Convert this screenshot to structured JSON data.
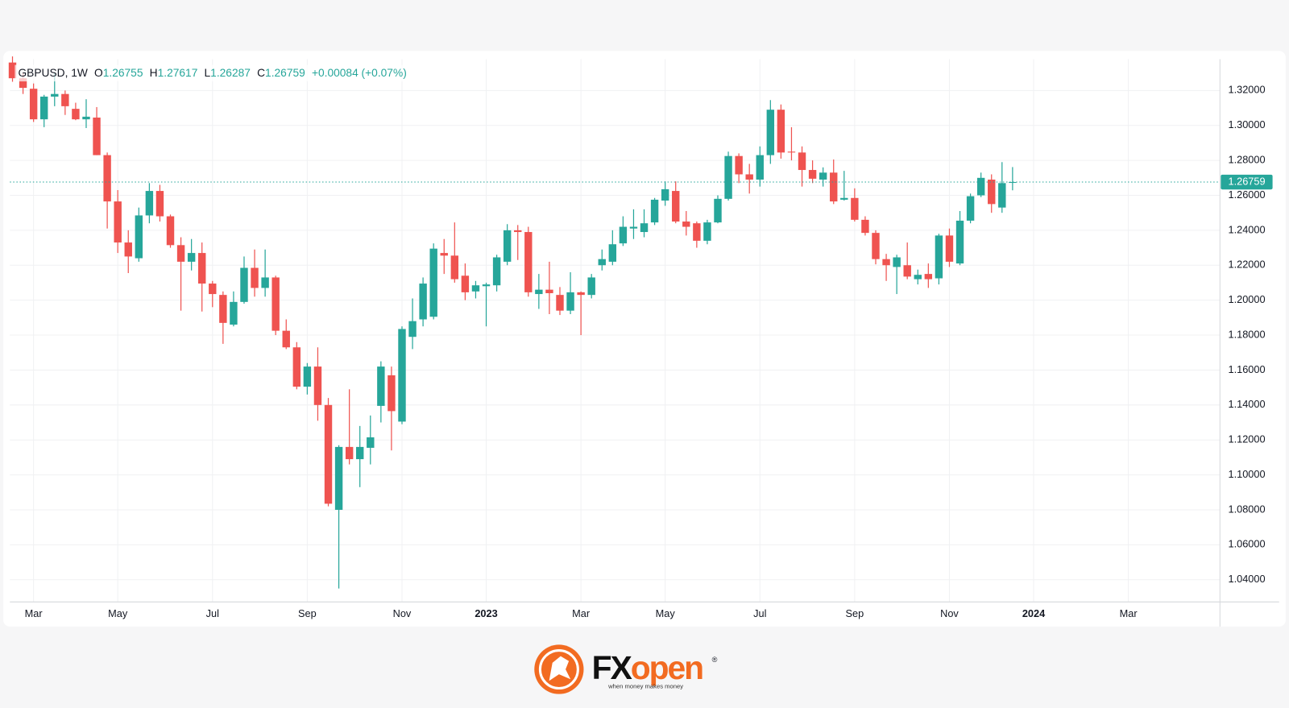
{
  "chart_data": {
    "type": "candlestick",
    "symbol_label": "GBPUSD, 1W",
    "ohlc_labels": [
      "O",
      "H",
      "L",
      "C"
    ],
    "change": "+0.00084 (+0.07%)",
    "up_color": "#26a69a",
    "down_color": "#ef5350",
    "grid": true,
    "categories": [
      null,
      null,
      null,
      null,
      null,
      null,
      null,
      null,
      null,
      null,
      null,
      null,
      null,
      null,
      null,
      null,
      null,
      null,
      null,
      null,
      null,
      null,
      null,
      null,
      null,
      null,
      null,
      null,
      null,
      null,
      null,
      null,
      null,
      null,
      null,
      null,
      null,
      null,
      null,
      null,
      null,
      null,
      null,
      null,
      null,
      null,
      null,
      null,
      null,
      null,
      null,
      null,
      null,
      null,
      null,
      null,
      null,
      null,
      null,
      null,
      null,
      null,
      null,
      null,
      null,
      null,
      null,
      null,
      null,
      null,
      null,
      null,
      null,
      null,
      null,
      null,
      null,
      null,
      null,
      null,
      null,
      null,
      null,
      null,
      null,
      null,
      null,
      null,
      null,
      null,
      null,
      null,
      null,
      null,
      null,
      null
    ],
    "open": [
      1.336,
      1.327,
      1.321,
      1.3035,
      1.3165,
      1.318,
      1.3095,
      1.3035,
      1.3045,
      1.283,
      1.2565,
      1.233,
      1.224,
      1.2485,
      1.2625,
      1.248,
      1.2315,
      1.222,
      1.227,
      1.2095,
      1.203,
      1.186,
      1.199,
      1.2185,
      1.207,
      1.213,
      1.1825,
      1.173,
      1.1505,
      1.162,
      1.14,
      1.08,
      1.116,
      1.109,
      1.1155,
      1.1395,
      1.157,
      1.1305,
      1.179,
      1.189,
      1.1905,
      1.227,
      1.2255,
      1.214,
      1.205,
      1.208,
      1.2085,
      1.222,
      1.24,
      1.239,
      1.2035,
      1.206,
      1.203,
      1.194,
      1.2045,
      1.203,
      1.22,
      1.222,
      1.2325,
      1.241,
      1.239,
      1.2445,
      1.257,
      1.2625,
      1.245,
      1.244,
      1.234,
      1.2445,
      1.258,
      1.2825,
      1.272,
      1.269,
      1.283,
      1.309,
      1.285,
      1.2845,
      1.2745,
      1.269,
      1.273,
      1.2575,
      1.2585,
      1.246,
      1.2385,
      1.2235,
      1.219,
      1.22,
      1.212,
      1.215,
      1.2125,
      1.237,
      1.221,
      1.2455,
      1.26,
      1.269,
      1.253,
      1.26755
    ],
    "high": [
      1.3395,
      1.33,
      1.324,
      1.3175,
      1.33,
      1.32,
      1.313,
      1.315,
      1.3105,
      1.2845,
      1.263,
      1.24,
      1.253,
      1.267,
      1.266,
      1.249,
      1.236,
      1.235,
      1.233,
      1.211,
      1.205,
      1.205,
      1.225,
      1.229,
      1.229,
      1.214,
      1.189,
      1.176,
      1.164,
      1.173,
      1.144,
      1.117,
      1.149,
      1.128,
      1.134,
      1.165,
      1.162,
      1.185,
      1.201,
      1.213,
      1.2325,
      1.235,
      1.2445,
      1.221,
      1.211,
      1.21,
      1.226,
      1.2435,
      1.243,
      1.242,
      1.215,
      1.222,
      1.2075,
      1.216,
      1.205,
      1.215,
      1.229,
      1.24,
      1.248,
      1.252,
      1.252,
      1.2585,
      1.268,
      1.268,
      1.251,
      1.245,
      1.246,
      1.26,
      1.285,
      1.284,
      1.278,
      1.288,
      1.3145,
      1.312,
      1.299,
      1.288,
      1.28,
      1.276,
      1.2805,
      1.274,
      1.264,
      1.248,
      1.24,
      1.2265,
      1.226,
      1.233,
      1.2175,
      1.221,
      1.238,
      1.241,
      1.251,
      1.261,
      1.273,
      1.272,
      1.279,
      1.27617
    ],
    "low": [
      1.325,
      1.318,
      1.302,
      1.299,
      1.311,
      1.306,
      1.303,
      1.2985,
      1.283,
      1.241,
      1.227,
      1.2155,
      1.222,
      1.244,
      1.245,
      1.23,
      1.194,
      1.217,
      1.1935,
      1.196,
      1.175,
      1.185,
      1.198,
      1.202,
      1.202,
      1.18,
      1.172,
      1.149,
      1.146,
      1.131,
      1.082,
      1.035,
      1.106,
      1.093,
      1.106,
      1.13,
      1.114,
      1.129,
      1.172,
      1.185,
      1.189,
      1.215,
      1.21,
      1.2,
      1.201,
      1.185,
      1.205,
      1.22,
      1.223,
      1.202,
      1.195,
      1.192,
      1.1915,
      1.192,
      1.18,
      1.201,
      1.217,
      1.22,
      1.231,
      1.235,
      1.236,
      1.243,
      1.254,
      1.244,
      1.237,
      1.23,
      1.232,
      1.244,
      1.257,
      1.267,
      1.261,
      1.265,
      1.278,
      1.281,
      1.28,
      1.265,
      1.267,
      1.265,
      1.255,
      1.257,
      1.245,
      1.237,
      1.2205,
      1.211,
      1.2035,
      1.212,
      1.209,
      1.207,
      1.209,
      1.219,
      1.22,
      1.244,
      1.259,
      1.25,
      1.25,
      1.26287
    ],
    "close": [
      1.327,
      1.3215,
      1.3035,
      1.3165,
      1.318,
      1.311,
      1.3035,
      1.305,
      1.283,
      1.2565,
      1.233,
      1.225,
      1.2485,
      1.2625,
      1.248,
      1.2315,
      1.222,
      1.227,
      1.2095,
      1.2035,
      1.187,
      1.199,
      1.2185,
      1.207,
      1.213,
      1.1825,
      1.173,
      1.1505,
      1.162,
      1.14,
      1.0835,
      1.116,
      1.109,
      1.116,
      1.1215,
      1.162,
      1.1365,
      1.1835,
      1.188,
      1.2095,
      1.2295,
      1.2255,
      1.212,
      1.2045,
      1.2085,
      1.209,
      1.2245,
      1.24,
      1.239,
      1.2045,
      1.206,
      1.204,
      1.194,
      1.2045,
      1.203,
      1.213,
      1.2235,
      1.232,
      1.242,
      1.242,
      1.244,
      1.2575,
      1.2635,
      1.245,
      1.242,
      1.234,
      1.2445,
      1.258,
      1.2825,
      1.272,
      1.269,
      1.283,
      1.309,
      1.2845,
      1.2845,
      1.2745,
      1.2695,
      1.273,
      1.2565,
      1.2585,
      1.246,
      1.2385,
      1.2235,
      1.22,
      1.2245,
      1.2135,
      1.2145,
      1.212,
      1.237,
      1.222,
      1.2455,
      1.2595,
      1.27,
      1.255,
      1.267,
      1.26759
    ],
    "xlim": [
      -0.25,
      114.7
    ],
    "xticks": [
      {
        "value": 2,
        "label": "Mar"
      },
      {
        "value": 10,
        "label": "May"
      },
      {
        "value": 19,
        "label": "Jul"
      },
      {
        "value": 28,
        "label": "Sep"
      },
      {
        "value": 37,
        "label": "Nov"
      },
      {
        "value": 45,
        "label": "2023"
      },
      {
        "value": 54,
        "label": "Mar"
      },
      {
        "value": 62,
        "label": "May"
      },
      {
        "value": 71,
        "label": "Jul"
      },
      {
        "value": 80,
        "label": "Sep"
      },
      {
        "value": 89,
        "label": "Nov"
      },
      {
        "value": 97,
        "label": "2024"
      },
      {
        "value": 106,
        "label": "Mar"
      }
    ],
    "ylim": [
      1.0273,
      1.3379
    ],
    "yticks": [
      {
        "value": 1.04,
        "label": "1.04000"
      },
      {
        "value": 1.06,
        "label": "1.06000"
      },
      {
        "value": 1.08,
        "label": "1.08000"
      },
      {
        "value": 1.1,
        "label": "1.10000"
      },
      {
        "value": 1.12,
        "label": "1.12000"
      },
      {
        "value": 1.14,
        "label": "1.14000"
      },
      {
        "value": 1.16,
        "label": "1.16000"
      },
      {
        "value": 1.18,
        "label": "1.18000"
      },
      {
        "value": 1.2,
        "label": "1.20000"
      },
      {
        "value": 1.22,
        "label": "1.22000"
      },
      {
        "value": 1.24,
        "label": "1.24000"
      },
      {
        "value": 1.26,
        "label": "1.26000"
      },
      {
        "value": 1.28,
        "label": "1.28000"
      },
      {
        "value": 1.3,
        "label": "1.30000"
      },
      {
        "value": 1.32,
        "label": "1.32000"
      }
    ]
  },
  "logo": {
    "text_dark": "FX",
    "text_accent": "open",
    "tagline": "when money makes money",
    "mark": "®"
  }
}
